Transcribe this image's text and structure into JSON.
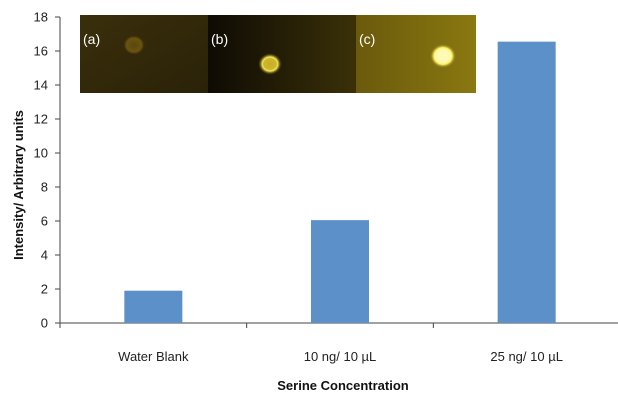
{
  "chart_data": {
    "type": "bar",
    "categories": [
      "Water Blank",
      "10 ng/ 10 µL",
      "25 ng/ 10 µL"
    ],
    "values": [
      1.9,
      6.05,
      16.55
    ],
    "xlabel": "Serine Concentration",
    "ylabel": "Intensity/ Arbitrary units",
    "ylim": [
      0,
      18
    ],
    "yticks": [
      0,
      2,
      4,
      6,
      8,
      10,
      12,
      14,
      16,
      18
    ],
    "grid": false,
    "bar_color": "#5b91c8"
  },
  "inset": {
    "panels": [
      {
        "label": "(a)",
        "spot_color": "#6b5410"
      },
      {
        "label": "(b)",
        "spot_color": "#f4e04a"
      },
      {
        "label": "(c)",
        "spot_color": "#fff56a"
      }
    ]
  }
}
